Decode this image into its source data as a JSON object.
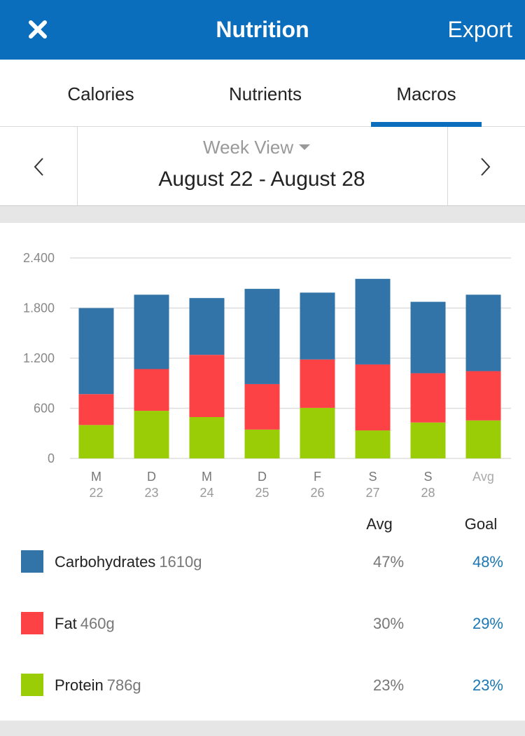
{
  "header": {
    "title": "Nutrition",
    "action": "Export"
  },
  "tabs": [
    "Calories",
    "Nutrients",
    "Macros"
  ],
  "active_tab": 2,
  "period": {
    "view": "Week View",
    "range": "August 22 - August 28"
  },
  "chart_data": {
    "type": "stacked_bar",
    "categories": [
      "M",
      "D",
      "M",
      "D",
      "F",
      "S",
      "S",
      "Avg"
    ],
    "dates": [
      "22",
      "23",
      "24",
      "25",
      "26",
      "27",
      "28",
      null
    ],
    "ylim": [
      0,
      2400
    ],
    "yticks": [
      0,
      600,
      {
        "value": 1200,
        "label": "1.200"
      },
      {
        "value": 1800,
        "label": "1.800"
      },
      {
        "value": 2400,
        "label": "2.400"
      }
    ],
    "grid": true,
    "series": [
      {
        "name": "Carbohydrates",
        "color": "#3274a7",
        "total": "1610g",
        "avg": "47%",
        "goal": "48%",
        "values": [
          1030,
          890,
          680,
          1140,
          800,
          1025,
          855,
          915
        ]
      },
      {
        "name": "Fat",
        "color": "#fd4246",
        "total": "460g",
        "avg": "30%",
        "goal": "29%",
        "values": [
          370,
          500,
          745,
          545,
          580,
          790,
          590,
          590
        ]
      },
      {
        "name": "Protein",
        "color": "#9acd06",
        "total": "786g",
        "avg": "23%",
        "goal": "23%",
        "values": [
          400,
          570,
          495,
          345,
          605,
          335,
          430,
          455
        ]
      }
    ],
    "column_headers": [
      "Avg",
      "Goal"
    ]
  }
}
